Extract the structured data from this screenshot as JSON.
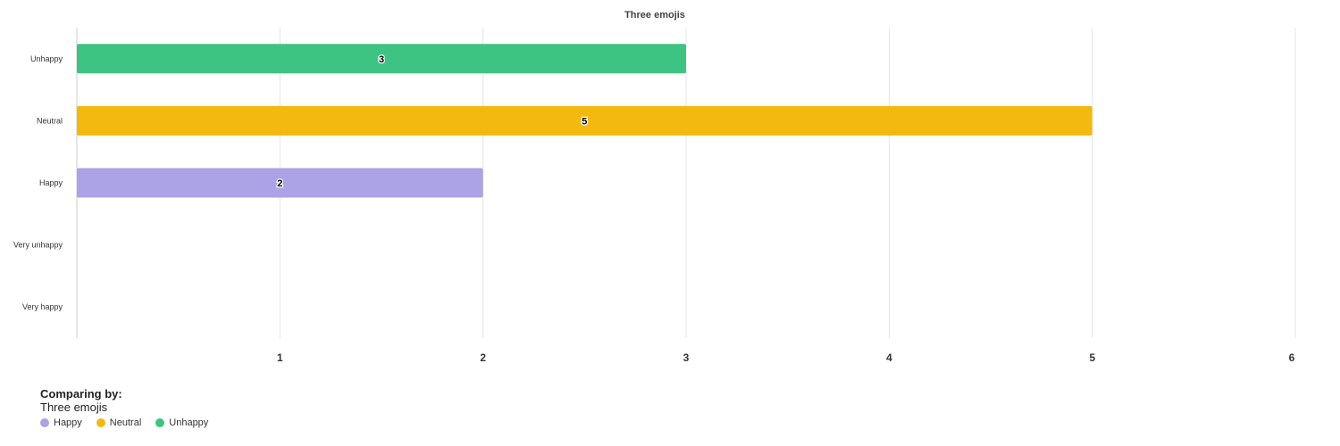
{
  "chart_data": {
    "type": "bar",
    "orientation": "horizontal",
    "title": "Three emojis",
    "categories": [
      "Unhappy",
      "Neutral",
      "Happy",
      "Very unhappy",
      "Very happy"
    ],
    "values": [
      3,
      5,
      2,
      null,
      null
    ],
    "bar_colors": [
      "#3ec482",
      "#f3b90f",
      "#aba3e6",
      null,
      null
    ],
    "data_labels": [
      "3",
      "5",
      "2",
      "",
      ""
    ],
    "x_ticks": [
      "1",
      "2",
      "3",
      "4",
      "5",
      "6"
    ],
    "xlim": [
      0,
      6
    ],
    "grid": true,
    "legend_position": "bottom-left"
  },
  "legend": {
    "heading": "Comparing by:",
    "subtitle": "Three emojis",
    "items": [
      {
        "label": "Happy",
        "color": "#aba3e6"
      },
      {
        "label": "Neutral",
        "color": "#f3b90f"
      },
      {
        "label": "Unhappy",
        "color": "#3ec482"
      }
    ]
  }
}
